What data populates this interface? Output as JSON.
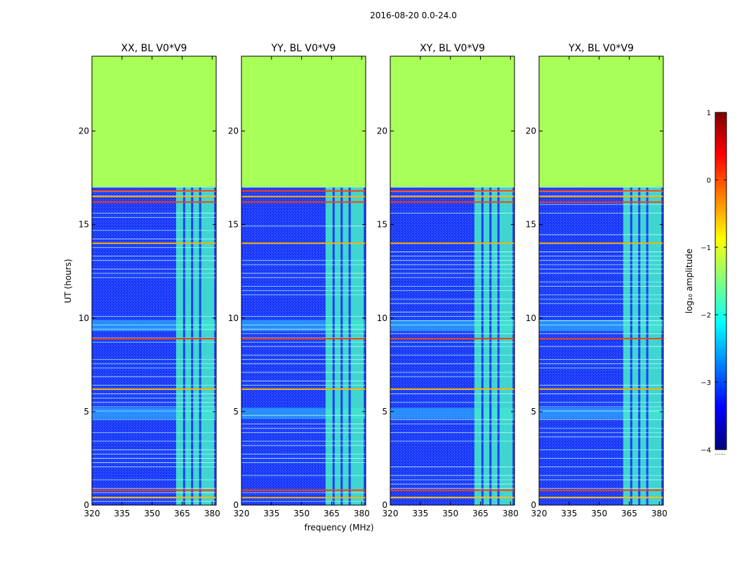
{
  "figure": {
    "title": "2016-08-20 0.0-24.0"
  },
  "chart_data": {
    "type": "heatmap",
    "suptitle": "2016-08-20 0.0-24.0",
    "xlabel": "frequency (MHz)",
    "ylabel": "UT (hours)",
    "xlim": [
      320,
      382
    ],
    "ylim": [
      0,
      24
    ],
    "xticks": [
      "320",
      "335",
      "350",
      "365",
      "380"
    ],
    "yticks": [
      "0",
      "5",
      "10",
      "15",
      "20"
    ],
    "xtick_values": [
      320,
      335,
      350,
      365,
      380
    ],
    "ytick_values": [
      0,
      5,
      10,
      15,
      20
    ],
    "panels": [
      {
        "title": "XX, BL V0*V9"
      },
      {
        "title": "YY, BL V0*V9"
      },
      {
        "title": "XY, BL V0*V9"
      },
      {
        "title": "YX, BL V0*V9"
      }
    ],
    "data_extent_hours": [
      0,
      17
    ],
    "empty_region_log10_amplitude": -1.3,
    "background_log10_amplitude": -3.2,
    "rfi_band_mhz": [
      362,
      381
    ],
    "rfi_subchannel_gaps_mhz": [
      366,
      370,
      374
    ],
    "strong_time_lines_hours": [
      0.4,
      0.8,
      6.2,
      8.9,
      14,
      16.2,
      16.5,
      16.8
    ],
    "bright_band_hours": [
      [
        4.6,
        5.2
      ],
      [
        9.3,
        9.9
      ]
    ],
    "colorbar": {
      "label": "log₁₀ amplitude",
      "ticks": [
        "1",
        "0",
        "−1",
        "−2",
        "−3",
        "−4"
      ],
      "tick_values": [
        1,
        0,
        -1,
        -2,
        -3,
        -4
      ],
      "range": [
        -4,
        1
      ],
      "underflow_label": "......"
    }
  }
}
